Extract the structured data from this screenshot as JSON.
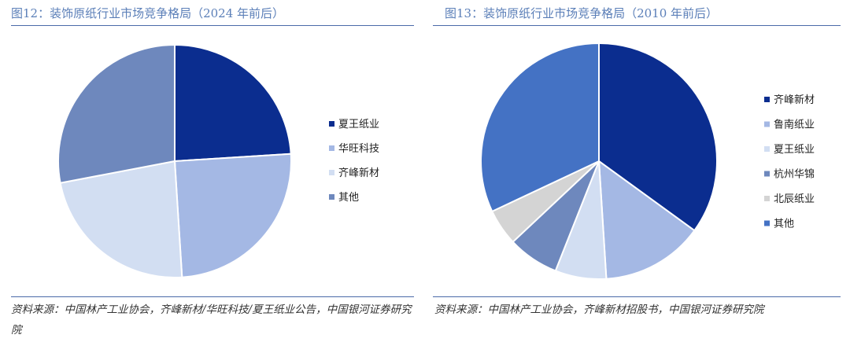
{
  "chart_data": [
    {
      "type": "pie",
      "title": "图12：装饰原纸行业市场竞争格局（2024 年前后）",
      "source": "资料来源：中国林产工业协会，齐峰新材/华旺科技/夏王纸业公告，中国银河证券研究院",
      "legend_position": "right",
      "series": [
        {
          "name": "夏王纸业",
          "value": 24,
          "color": "#0b2d8f"
        },
        {
          "name": "华旺科技",
          "value": 25,
          "color": "#a4b8e4"
        },
        {
          "name": "齐峰新材",
          "value": 23,
          "color": "#d2def2"
        },
        {
          "name": "其他",
          "value": 28,
          "color": "#6e88bd"
        }
      ]
    },
    {
      "type": "pie",
      "title": "图13：装饰原纸行业市场竞争格局（2010 年前后）",
      "source": "资料来源：中国林产工业协会，齐峰新材招股书，中国银河证券研究院",
      "legend_position": "right",
      "series": [
        {
          "name": "齐峰新材",
          "value": 35,
          "color": "#0b2d8f"
        },
        {
          "name": "鲁南纸业",
          "value": 14,
          "color": "#a4b8e4"
        },
        {
          "name": "夏王纸业",
          "value": 7,
          "color": "#d2def2"
        },
        {
          "name": "杭州华锦",
          "value": 7,
          "color": "#6e88bd"
        },
        {
          "name": "北辰纸业",
          "value": 5,
          "color": "#d4d4d4"
        },
        {
          "name": "其他",
          "value": 32,
          "color": "#4472c4"
        }
      ]
    }
  ]
}
